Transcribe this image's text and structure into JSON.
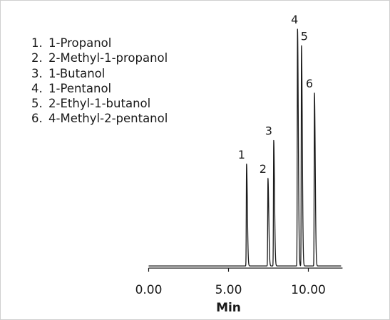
{
  "chart_data": {
    "type": "line",
    "title": "",
    "xlabel": "Min",
    "ylabel": "",
    "xlim": [
      0.0,
      12.5
    ],
    "ylim": [
      0,
      100
    ],
    "x_ticks": [
      "0.00",
      "5.00",
      "10.00"
    ],
    "x_tick_values": [
      0,
      5,
      10
    ],
    "grid": false,
    "legend": [
      {
        "num": "1.",
        "label": "1-Propanol"
      },
      {
        "num": "2.",
        "label": "2-Methyl-1-propanol"
      },
      {
        "num": "3.",
        "label": "1-Butanol"
      },
      {
        "num": "4.",
        "label": "1-Pentanol"
      },
      {
        "num": "5.",
        "label": "2-Ethyl-1-butanol"
      },
      {
        "num": "6.",
        "label": "4-Methyl-2-pentanol"
      }
    ],
    "legend_position": "top-left",
    "trace_start": 0.0,
    "trace_end": 12.05,
    "peaks": [
      {
        "label": "1",
        "rt": 6.13,
        "height": 43
      },
      {
        "label": "2",
        "rt": 7.47,
        "height": 37
      },
      {
        "label": "3",
        "rt": 7.83,
        "height": 53
      },
      {
        "label": "4",
        "rt": 9.32,
        "height": 100
      },
      {
        "label": "5",
        "rt": 9.57,
        "height": 93
      },
      {
        "label": "6",
        "rt": 10.38,
        "height": 73
      }
    ]
  }
}
